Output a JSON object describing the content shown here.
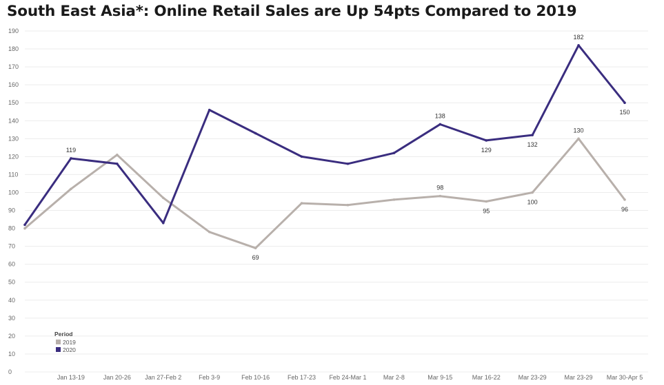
{
  "title": "South East Asia*: Online Retail Sales are Up 54pts Compared to 2019",
  "chart_data": {
    "type": "line",
    "title": "South East Asia*: Online Retail Sales are Up 54pts Compared to 2019",
    "categories": [
      "",
      "Jan 13-19",
      "Jan 20-26",
      "Jan 27-Feb 2",
      "Feb 3-9",
      "Feb 10-16",
      "Feb 17-23",
      "Feb 24-Mar 1",
      "Mar 2-8",
      "Mar 9-15",
      "Mar 16-22",
      "Mar 23-29",
      "Mar 23-29",
      "Mar 30-Apr 5"
    ],
    "y_ticks": [
      0,
      10,
      20,
      30,
      40,
      50,
      60,
      70,
      80,
      90,
      100,
      110,
      120,
      130,
      140,
      150,
      160,
      170,
      180,
      190
    ],
    "ylim": [
      0,
      190
    ],
    "grid": true,
    "legend": {
      "title": "Period",
      "position": "bottom-left"
    },
    "series": [
      {
        "name": "2019",
        "color": "#b8b0ab",
        "values": [
          80,
          102,
          121,
          97,
          78,
          69,
          94,
          93,
          96,
          98,
          95,
          100,
          130,
          96
        ],
        "labels": [
          "",
          "",
          "",
          "",
          "",
          "69",
          "",
          "",
          "",
          "98",
          "95",
          "100",
          "130",
          "96"
        ],
        "label_pos": [
          "",
          "",
          "",
          "",
          "",
          "below",
          "",
          "",
          "",
          "above",
          "below",
          "below",
          "above",
          "below"
        ]
      },
      {
        "name": "2020",
        "color": "#3a2d7f",
        "values": [
          82,
          119,
          116,
          83,
          146,
          133,
          120,
          116,
          122,
          138,
          129,
          132,
          182,
          150
        ],
        "labels": [
          "",
          "119",
          "",
          "",
          "",
          "",
          "",
          "",
          "",
          "138",
          "129",
          "132",
          "182",
          "150"
        ],
        "label_pos": [
          "",
          "above",
          "",
          "",
          "",
          "",
          "",
          "",
          "",
          "above",
          "below",
          "below",
          "above",
          "below"
        ]
      }
    ]
  }
}
